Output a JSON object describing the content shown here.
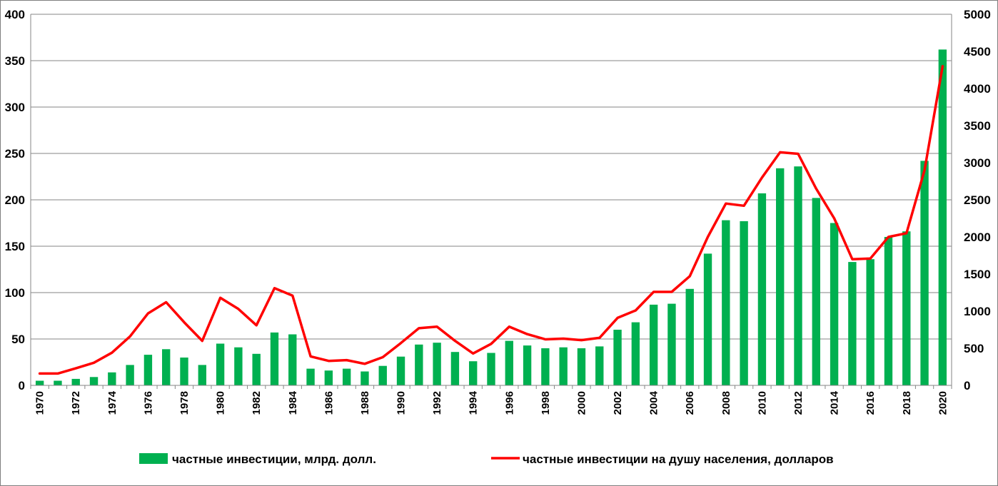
{
  "chart_data": {
    "type": "bar+line",
    "categories": [
      "1970",
      "1971",
      "1972",
      "1973",
      "1974",
      "1975",
      "1976",
      "1977",
      "1978",
      "1979",
      "1980",
      "1981",
      "1982",
      "1983",
      "1984",
      "1985",
      "1986",
      "1987",
      "1988",
      "1989",
      "1990",
      "1991",
      "1992",
      "1993",
      "1994",
      "1995",
      "1996",
      "1997",
      "1998",
      "1999",
      "2000",
      "2001",
      "2002",
      "2003",
      "2004",
      "2005",
      "2006",
      "2007",
      "2008",
      "2009",
      "2010",
      "2011",
      "2012",
      "2013",
      "2014",
      "2015",
      "2016",
      "2017",
      "2018",
      "2019",
      "2020"
    ],
    "x_tick_labels": [
      "1970",
      "1972",
      "1974",
      "1976",
      "1978",
      "1980",
      "1982",
      "1984",
      "1986",
      "1988",
      "1990",
      "1992",
      "1994",
      "1996",
      "1998",
      "2000",
      "2002",
      "2004",
      "2006",
      "2008",
      "2010",
      "2012",
      "2014",
      "2016",
      "2018",
      "2020"
    ],
    "series": [
      {
        "name": "частные инвестиции, млрд. долл.",
        "kind": "bar",
        "axis": "left",
        "color": "#00b050",
        "values": [
          5,
          5,
          7,
          9,
          14,
          22,
          33,
          39,
          30,
          22,
          45,
          41,
          34,
          57,
          55,
          18,
          16,
          18,
          15,
          21,
          31,
          44,
          46,
          36,
          26,
          35,
          48,
          43,
          40,
          41,
          40,
          42,
          60,
          68,
          87,
          88,
          104,
          142,
          178,
          177,
          207,
          234,
          236,
          202,
          175,
          133,
          136,
          160,
          166,
          242,
          362
        ]
      },
      {
        "name": "частные инвестиции на душу населения, долларов",
        "kind": "line",
        "axis": "right",
        "color": "#ff0000",
        "values": [
          160,
          160,
          230,
          305,
          440,
          660,
          970,
          1120,
          850,
          600,
          1180,
          1030,
          810,
          1310,
          1210,
          390,
          330,
          340,
          290,
          380,
          570,
          770,
          790,
          600,
          430,
          560,
          790,
          690,
          620,
          630,
          610,
          640,
          910,
          1010,
          1260,
          1260,
          1470,
          2000,
          2450,
          2420,
          2800,
          3140,
          3120,
          2650,
          2250,
          1700,
          1710,
          2000,
          2050,
          2900,
          4300
        ]
      }
    ],
    "y_left": {
      "min": 0,
      "max": 400,
      "ticks": [
        "0",
        "50",
        "100",
        "150",
        "200",
        "250",
        "300",
        "350",
        "400"
      ]
    },
    "y_right": {
      "min": 0,
      "max": 5000,
      "ticks": [
        "0",
        "500",
        "1000",
        "1500",
        "2000",
        "2500",
        "3000",
        "3500",
        "4000",
        "4500",
        "5000"
      ]
    },
    "grid": true,
    "legend_position": "bottom",
    "title": ""
  }
}
